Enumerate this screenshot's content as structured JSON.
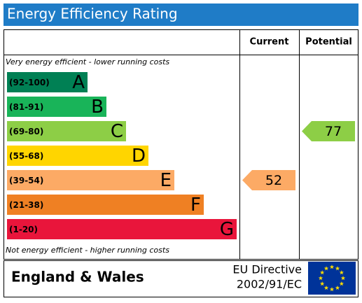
{
  "chart_data": {
    "type": "epc",
    "title": "Energy Efficiency Rating",
    "top_note": "Very energy efficient - lower running costs",
    "bottom_note": "Not energy efficient - higher running costs",
    "bands": [
      {
        "range": "(92-100)",
        "letter": "A",
        "color": "#008054"
      },
      {
        "range": "(81-91)",
        "letter": "B",
        "color": "#19b459"
      },
      {
        "range": "(69-80)",
        "letter": "C",
        "color": "#8dce46"
      },
      {
        "range": "(55-68)",
        "letter": "D",
        "color": "#ffd500"
      },
      {
        "range": "(39-54)",
        "letter": "E",
        "color": "#fcaa65"
      },
      {
        "range": "(21-38)",
        "letter": "F",
        "color": "#ef8023"
      },
      {
        "range": "(1-20)",
        "letter": "G",
        "color": "#e9153b"
      }
    ],
    "series": [
      {
        "name": "Current",
        "value": 52
      },
      {
        "name": "Potential",
        "value": 77
      }
    ],
    "region": "England & Wales",
    "directive": "EU Directive",
    "directive_code": "2002/91/EC"
  }
}
